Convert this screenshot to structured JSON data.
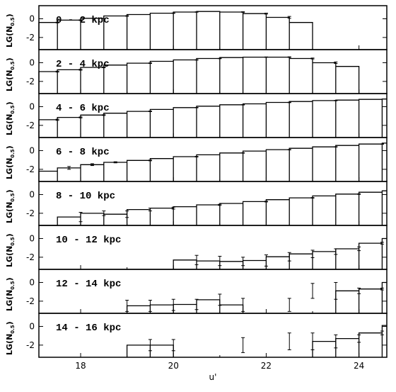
{
  "chart_data": {
    "type": "histogram-panels",
    "x_label": "u'",
    "y_label_main": "LG(N",
    "y_label_sub": "0.5",
    "y_label_close": ")",
    "x_range": [
      17.1,
      24.6
    ],
    "x_ticks": [
      18,
      20,
      22,
      24
    ],
    "y_range": [
      -3.3,
      1.4
    ],
    "y_ticks": [
      0,
      -2
    ],
    "bin_width": 0.5,
    "panels": [
      {
        "label": "0 - 2 kpc",
        "bins": [
          [
            17.25,
            -0.4
          ],
          [
            17.75,
            -0.15
          ],
          [
            18.25,
            0.05
          ],
          [
            18.75,
            0.3
          ],
          [
            19.25,
            0.45
          ],
          [
            19.75,
            0.6
          ],
          [
            20.25,
            0.72
          ],
          [
            20.75,
            0.78
          ],
          [
            21.25,
            0.72
          ],
          [
            21.75,
            0.55
          ],
          [
            22.25,
            0.15
          ],
          [
            22.75,
            -0.4
          ]
        ],
        "errors": [
          [
            17.5,
            0.04
          ],
          [
            18.0,
            0.04
          ],
          [
            19.0,
            0.03
          ],
          [
            20.0,
            0.02
          ],
          [
            20.5,
            0.02
          ],
          [
            21.5,
            0.03
          ],
          [
            22.0,
            0.05
          ],
          [
            22.5,
            0.1
          ]
        ],
        "drop_x": 22.75
      },
      {
        "label": "2 - 4 kpc",
        "bins": [
          [
            17.25,
            -0.95
          ],
          [
            17.75,
            -0.75
          ],
          [
            18.25,
            -0.5
          ],
          [
            18.75,
            -0.25
          ],
          [
            19.25,
            -0.05
          ],
          [
            19.75,
            0.15
          ],
          [
            20.25,
            0.3
          ],
          [
            20.75,
            0.45
          ],
          [
            21.25,
            0.55
          ],
          [
            21.75,
            0.6
          ],
          [
            22.25,
            0.6
          ],
          [
            22.75,
            0.45
          ],
          [
            23.25,
            0.0
          ],
          [
            23.75,
            -0.4
          ]
        ],
        "errors": [
          [
            17.5,
            0.05
          ],
          [
            18.0,
            0.05
          ],
          [
            18.5,
            0.04
          ],
          [
            19.5,
            0.03
          ],
          [
            20.5,
            0.02
          ],
          [
            21.0,
            0.02
          ],
          [
            22.0,
            0.02
          ],
          [
            22.5,
            0.03
          ],
          [
            23.0,
            0.05
          ],
          [
            23.5,
            0.08
          ]
        ],
        "drop_x": 23.75
      },
      {
        "label": "4 - 6 kpc",
        "bins": [
          [
            17.25,
            -1.4
          ],
          [
            17.75,
            -1.15
          ],
          [
            18.25,
            -0.9
          ],
          [
            18.75,
            -0.7
          ],
          [
            19.25,
            -0.5
          ],
          [
            19.75,
            -0.3
          ],
          [
            20.25,
            -0.1
          ],
          [
            20.75,
            0.05
          ],
          [
            21.25,
            0.2
          ],
          [
            21.75,
            0.3
          ],
          [
            22.25,
            0.45
          ],
          [
            22.75,
            0.55
          ],
          [
            23.25,
            0.65
          ],
          [
            23.75,
            0.7
          ],
          [
            24.25,
            0.78
          ],
          [
            24.75,
            0.82
          ]
        ],
        "errors": [
          [
            17.5,
            0.06
          ],
          [
            18.0,
            0.05
          ],
          [
            18.5,
            0.04
          ],
          [
            19.5,
            0.03
          ],
          [
            20.5,
            0.02
          ],
          [
            21.5,
            0.02
          ],
          [
            22.5,
            0.02
          ],
          [
            23.5,
            0.02
          ]
        ],
        "drop_x": null
      },
      {
        "label": "6 - 8 kpc",
        "bins": [
          [
            17.25,
            -2.2
          ],
          [
            17.75,
            -1.85
          ],
          [
            18.25,
            -1.5
          ],
          [
            18.75,
            -1.25
          ],
          [
            19.25,
            -1.05
          ],
          [
            19.75,
            -0.85
          ],
          [
            20.25,
            -0.65
          ],
          [
            20.75,
            -0.45
          ],
          [
            21.25,
            -0.25
          ],
          [
            21.75,
            -0.05
          ],
          [
            22.25,
            0.1
          ],
          [
            22.75,
            0.25
          ],
          [
            23.25,
            0.4
          ],
          [
            23.75,
            0.55
          ],
          [
            24.25,
            0.7
          ],
          [
            24.75,
            0.8
          ]
        ],
        "errors": [
          [
            17.75,
            0.15
          ],
          [
            18.25,
            0.1
          ],
          [
            18.75,
            0.06
          ],
          [
            19.5,
            0.04
          ],
          [
            20.5,
            0.03
          ],
          [
            21.5,
            0.02
          ],
          [
            22.5,
            0.02
          ],
          [
            23.5,
            0.02
          ],
          [
            24.5,
            0.02
          ]
        ],
        "drop_x": null
      },
      {
        "label": "8 - 10 kpc",
        "bins": [
          [
            17.25,
            -3.5
          ],
          [
            17.75,
            -2.4
          ],
          [
            18.25,
            -2.0
          ],
          [
            18.75,
            -2.1
          ],
          [
            19.25,
            -1.6
          ],
          [
            19.75,
            -1.45
          ],
          [
            20.25,
            -1.3
          ],
          [
            20.75,
            -1.1
          ],
          [
            21.25,
            -0.95
          ],
          [
            21.75,
            -0.75
          ],
          [
            22.25,
            -0.55
          ],
          [
            22.75,
            -0.35
          ],
          [
            23.25,
            -0.15
          ],
          [
            23.75,
            0.05
          ],
          [
            24.25,
            0.25
          ],
          [
            24.75,
            0.4
          ]
        ],
        "errors": [
          [
            18.0,
            0.5
          ],
          [
            18.5,
            0.25
          ],
          [
            19.0,
            0.35
          ],
          [
            19.5,
            0.15
          ],
          [
            20.0,
            0.1
          ],
          [
            21.0,
            0.06
          ],
          [
            22.0,
            0.04
          ],
          [
            23.0,
            0.03
          ],
          [
            24.0,
            0.03
          ]
        ],
        "drop_x": null
      },
      {
        "label": "10 - 12 kpc",
        "bins": [
          [
            20.25,
            -2.3
          ],
          [
            20.75,
            -2.4
          ],
          [
            21.25,
            -2.45
          ],
          [
            21.75,
            -2.35
          ],
          [
            22.25,
            -1.95
          ],
          [
            22.75,
            -1.65
          ],
          [
            23.25,
            -1.4
          ],
          [
            23.75,
            -1.1
          ],
          [
            24.25,
            -0.5
          ],
          [
            24.75,
            0.0
          ]
        ],
        "errors": [
          [
            20.5,
            0.5
          ],
          [
            21.0,
            0.5
          ],
          [
            21.5,
            0.45
          ],
          [
            22.0,
            0.6
          ],
          [
            22.5,
            0.45
          ],
          [
            23.0,
            0.4
          ],
          [
            23.5,
            0.3
          ],
          [
            24.0,
            0.2
          ],
          [
            24.5,
            0.1
          ]
        ],
        "drop_x": null
      },
      {
        "label": "12 - 14 kpc",
        "bins": [
          [
            19.25,
            -2.5
          ],
          [
            19.75,
            -2.4
          ],
          [
            20.25,
            -2.35
          ],
          [
            20.75,
            -1.85
          ],
          [
            21.25,
            -2.4
          ],
          [
            23.75,
            -0.9
          ],
          [
            24.25,
            -0.7
          ],
          [
            24.75,
            0.0
          ]
        ],
        "errors": [
          [
            19.0,
            0.6
          ],
          [
            19.5,
            0.6
          ],
          [
            20.0,
            0.6
          ],
          [
            20.5,
            0.55
          ],
          [
            21.0,
            0.6
          ],
          [
            21.5,
            0.7
          ],
          [
            22.5,
            0.7
          ],
          [
            23.0,
            0.8
          ],
          [
            23.5,
            0.9
          ],
          [
            24.0,
            0.3
          ],
          [
            24.5,
            0.1
          ]
        ],
        "drop_x": null
      },
      {
        "label": "14 - 16 kpc",
        "bins": [
          [
            19.25,
            -2.0
          ],
          [
            19.75,
            -2.0
          ],
          [
            23.25,
            -1.6
          ],
          [
            23.75,
            -1.3
          ],
          [
            24.25,
            -0.7
          ],
          [
            24.75,
            0.1
          ]
        ],
        "errors": [
          [
            19.5,
            0.6
          ],
          [
            20.0,
            0.6
          ],
          [
            21.5,
            0.8
          ],
          [
            22.5,
            0.9
          ],
          [
            23.0,
            0.9
          ],
          [
            23.5,
            0.7
          ],
          [
            24.0,
            0.4
          ],
          [
            24.5,
            0.2
          ]
        ],
        "drop_x": null
      }
    ]
  }
}
